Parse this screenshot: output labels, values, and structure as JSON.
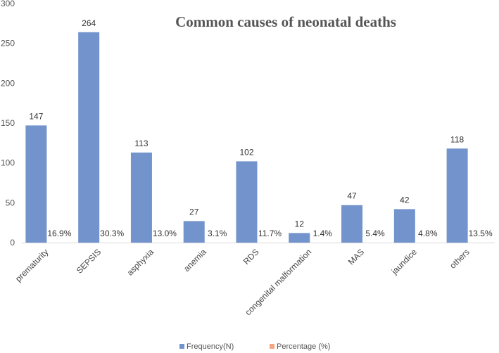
{
  "chart_data": {
    "type": "bar",
    "title": "Common causes of neonatal deaths",
    "categories": [
      "prematurity",
      "SEPSIS",
      "asphyxia",
      "anemia",
      "RDS",
      "congenital malformation",
      "MAS",
      "jaundice",
      "others"
    ],
    "series": [
      {
        "name": "Frequency(N)",
        "values": [
          147,
          264,
          113,
          27,
          102,
          12,
          47,
          42,
          118
        ],
        "color": "#7293CB"
      },
      {
        "name": "Percentage (%)",
        "values": [
          16.9,
          30.3,
          13.0,
          3.1,
          11.7,
          1.4,
          5.4,
          4.8,
          13.5
        ],
        "color": "#F4A582"
      }
    ],
    "frequency_labels": [
      "147",
      "264",
      "113",
      "27",
      "102",
      "12",
      "47",
      "42",
      "118"
    ],
    "percentage_labels": [
      "16.9%",
      "30.3%",
      "13.0%",
      "3.1%",
      "11.7%",
      "1.4%",
      "5.4%",
      "4.8%",
      "13.5%"
    ],
    "yticks": [
      "0",
      "50",
      "100",
      "150",
      "200",
      "250",
      "300"
    ],
    "ylim": [
      0,
      300
    ],
    "xlabel": "",
    "ylabel": "",
    "legend_position": "bottom-center",
    "grid": false
  }
}
